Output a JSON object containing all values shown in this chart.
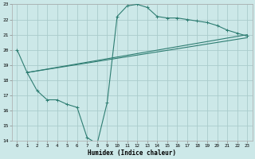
{
  "xlabel": "Humidex (Indice chaleur)",
  "xlim": [
    -0.5,
    23.5
  ],
  "ylim": [
    14,
    23
  ],
  "xticks": [
    0,
    1,
    2,
    3,
    4,
    5,
    6,
    7,
    8,
    9,
    10,
    11,
    12,
    13,
    14,
    15,
    16,
    17,
    18,
    19,
    20,
    21,
    22,
    23
  ],
  "yticks": [
    14,
    15,
    16,
    17,
    18,
    19,
    20,
    21,
    22,
    23
  ],
  "bg_color": "#cce8e8",
  "grid_color": "#aacccc",
  "line_color": "#2e7d72",
  "line1_x": [
    0,
    1,
    2,
    3,
    4,
    5,
    6,
    7,
    8,
    9,
    10,
    11,
    12,
    13,
    14,
    15,
    16,
    17,
    18,
    19,
    20,
    21,
    22,
    23
  ],
  "line1_y": [
    20.0,
    18.5,
    17.3,
    16.7,
    16.7,
    16.4,
    16.2,
    14.2,
    13.8,
    16.5,
    22.2,
    22.9,
    23.0,
    22.8,
    22.2,
    22.1,
    22.1,
    22.0,
    21.9,
    21.8,
    21.6,
    21.3,
    21.1,
    20.9
  ],
  "line2_x": [
    1,
    23
  ],
  "line2_y": [
    18.5,
    21.0
  ],
  "line3_x": [
    1,
    23
  ],
  "line3_y": [
    18.5,
    20.8
  ],
  "markers1": [
    0,
    1,
    2,
    3,
    4,
    5,
    6,
    7,
    8,
    9,
    10,
    11,
    12,
    13,
    14,
    15,
    16,
    17,
    18,
    19,
    20,
    21,
    22,
    23
  ],
  "markers1_y": [
    20.0,
    18.5,
    17.3,
    16.7,
    16.7,
    16.4,
    16.2,
    14.2,
    13.8,
    16.5,
    22.2,
    22.9,
    23.0,
    22.8,
    22.2,
    22.1,
    22.1,
    22.0,
    21.9,
    21.8,
    21.6,
    21.3,
    21.1,
    20.9
  ]
}
